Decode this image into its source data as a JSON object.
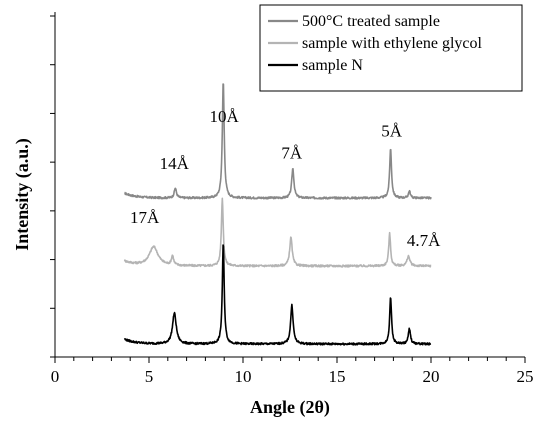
{
  "chart_data": {
    "type": "line",
    "xlabel": "Angle (2θ)",
    "ylabel": "Intensity (a.u.)",
    "xlim": [
      0,
      25
    ],
    "x_ticks": [
      "0",
      "5",
      "10",
      "15",
      "20",
      "25"
    ],
    "y_ticks": "unlabeled",
    "grid": false,
    "legend_position": "top-right",
    "series": [
      {
        "name": "500°C treated sample",
        "color": "#888888",
        "baseline": 0.45,
        "x_range": [
          3.7,
          20.0
        ],
        "peaks": [
          {
            "x": 6.4,
            "height": 0.25,
            "width": 0.07
          },
          {
            "x": 8.95,
            "height": 2.95,
            "width": 0.06
          },
          {
            "x": 12.65,
            "height": 0.75,
            "width": 0.07
          },
          {
            "x": 17.85,
            "height": 1.25,
            "width": 0.06
          },
          {
            "x": 18.85,
            "height": 0.18,
            "width": 0.06
          }
        ]
      },
      {
        "name": "sample with ethylene glycol",
        "color": "#b4b4b4",
        "baseline": 0.22,
        "x_range": [
          3.7,
          20.0
        ],
        "peaks": [
          {
            "x": 5.25,
            "height": 0.48,
            "width": 0.28
          },
          {
            "x": 6.25,
            "height": 0.24,
            "width": 0.07
          },
          {
            "x": 8.9,
            "height": 1.7,
            "width": 0.06
          },
          {
            "x": 12.55,
            "height": 0.72,
            "width": 0.08
          },
          {
            "x": 17.8,
            "height": 0.82,
            "width": 0.06
          },
          {
            "x": 18.8,
            "height": 0.25,
            "width": 0.09
          }
        ]
      },
      {
        "name": "sample N",
        "color": "#000000",
        "baseline": 0.2,
        "x_range": [
          3.7,
          20.0
        ],
        "peaks": [
          {
            "x": 6.35,
            "height": 0.78,
            "width": 0.12
          },
          {
            "x": 8.95,
            "height": 2.55,
            "width": 0.06
          },
          {
            "x": 12.6,
            "height": 0.98,
            "width": 0.08
          },
          {
            "x": 17.85,
            "height": 1.2,
            "width": 0.06
          },
          {
            "x": 18.85,
            "height": 0.38,
            "width": 0.07
          }
        ]
      }
    ],
    "annotations": [
      {
        "text": "10Å",
        "x": 9.0,
        "series": "500°C treated sample"
      },
      {
        "text": "14Å",
        "x": 6.4,
        "series": "500°C treated sample"
      },
      {
        "text": "7Å",
        "x": 12.65,
        "series": "500°C treated sample"
      },
      {
        "text": "5Å",
        "x": 17.85,
        "series": "500°C treated sample"
      },
      {
        "text": "17Å",
        "x": 5.3,
        "series": "sample with ethylene glycol"
      },
      {
        "text": "4.7Å",
        "x": 19.5,
        "series": "sample with ethylene glycol"
      }
    ]
  }
}
